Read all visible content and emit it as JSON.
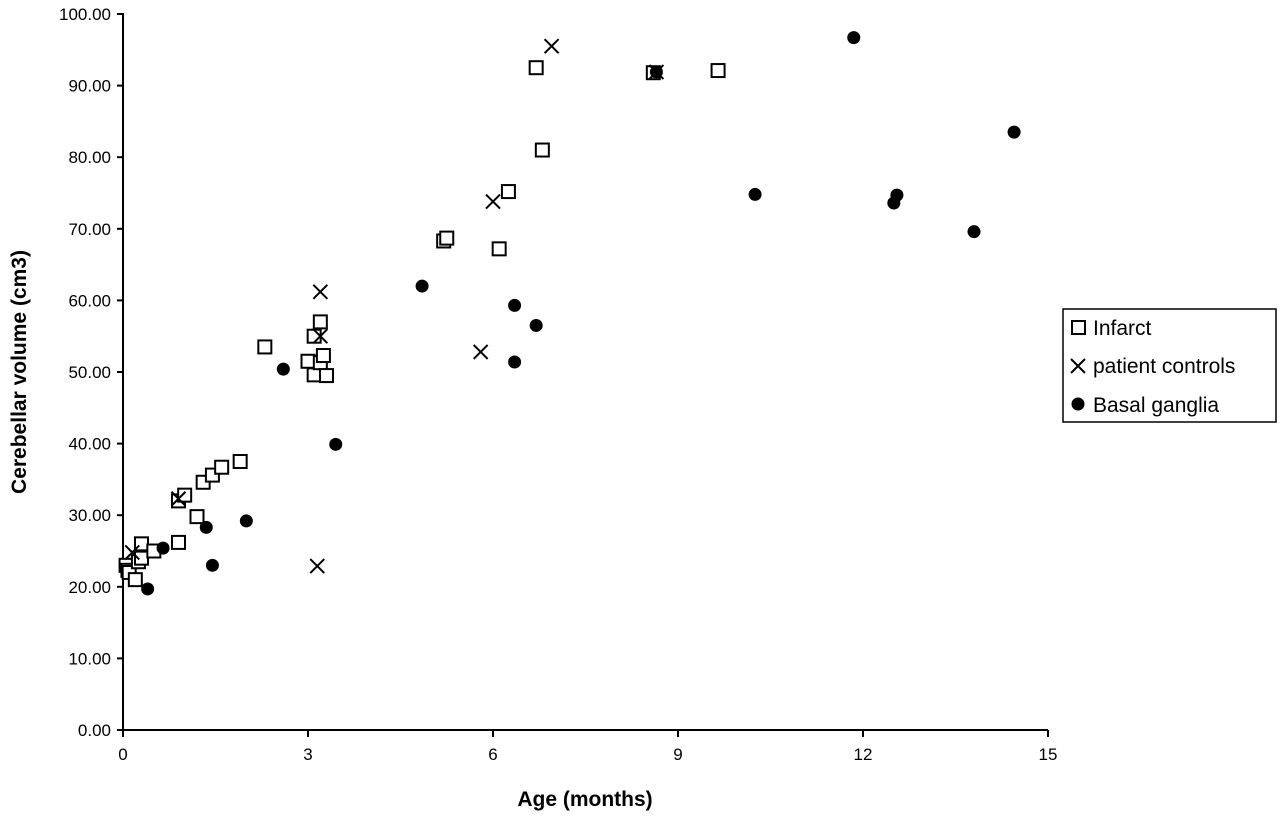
{
  "chart_data": {
    "type": "scatter",
    "title": "",
    "xlabel": "Age (months)",
    "ylabel": "Cerebellar volume (cm3)",
    "xlim": [
      0,
      15
    ],
    "ylim": [
      0,
      100
    ],
    "x_ticks": [
      "0",
      "3",
      "6",
      "9",
      "12",
      "15"
    ],
    "y_ticks": [
      "0.00",
      "10.00",
      "20.00",
      "30.00",
      "40.00",
      "50.00",
      "60.00",
      "70.00",
      "80.00",
      "90.00",
      "100.00"
    ],
    "grid": false,
    "legend_position": "right",
    "series": [
      {
        "name": "Infarct",
        "marker": "open-square",
        "points": [
          [
            0.05,
            23.0
          ],
          [
            0.08,
            22.3
          ],
          [
            0.1,
            22.0
          ],
          [
            0.2,
            21.0
          ],
          [
            0.25,
            23.5
          ],
          [
            0.3,
            26.0
          ],
          [
            0.3,
            24.0
          ],
          [
            0.5,
            25.0
          ],
          [
            0.9,
            32.0
          ],
          [
            0.9,
            26.2
          ],
          [
            1.0,
            32.8
          ],
          [
            1.2,
            29.8
          ],
          [
            1.3,
            34.6
          ],
          [
            1.45,
            35.6
          ],
          [
            1.6,
            36.7
          ],
          [
            1.9,
            37.5
          ],
          [
            2.3,
            53.5
          ],
          [
            3.0,
            51.5
          ],
          [
            3.1,
            49.6
          ],
          [
            3.1,
            55.0
          ],
          [
            3.2,
            57.0
          ],
          [
            3.2,
            51.3
          ],
          [
            3.25,
            52.3
          ],
          [
            3.3,
            49.5
          ],
          [
            5.2,
            68.3
          ],
          [
            5.25,
            68.7
          ],
          [
            6.1,
            67.2
          ],
          [
            6.25,
            75.2
          ],
          [
            6.7,
            92.5
          ],
          [
            6.8,
            81.0
          ],
          [
            8.6,
            91.8
          ],
          [
            9.65,
            92.1
          ]
        ]
      },
      {
        "name": "patient controls",
        "marker": "x",
        "points": [
          [
            0.15,
            24.8
          ],
          [
            0.9,
            32.3
          ],
          [
            3.15,
            22.9
          ],
          [
            3.2,
            61.2
          ],
          [
            3.2,
            55.0
          ],
          [
            5.8,
            52.8
          ],
          [
            6.0,
            73.8
          ],
          [
            6.95,
            95.5
          ],
          [
            8.65,
            91.9
          ]
        ]
      },
      {
        "name": "Basal ganglia",
        "marker": "filled-circle",
        "points": [
          [
            0.4,
            19.7
          ],
          [
            0.65,
            25.4
          ],
          [
            1.35,
            28.3
          ],
          [
            1.45,
            23.0
          ],
          [
            2.0,
            29.2
          ],
          [
            2.6,
            50.4
          ],
          [
            3.45,
            39.9
          ],
          [
            4.85,
            62.0
          ],
          [
            6.35,
            59.3
          ],
          [
            6.35,
            51.4
          ],
          [
            6.7,
            56.5
          ],
          [
            8.65,
            91.9
          ],
          [
            10.25,
            74.8
          ],
          [
            11.85,
            96.7
          ],
          [
            12.5,
            73.6
          ],
          [
            12.55,
            74.7
          ],
          [
            13.8,
            69.6
          ],
          [
            14.45,
            83.5
          ]
        ]
      }
    ]
  }
}
